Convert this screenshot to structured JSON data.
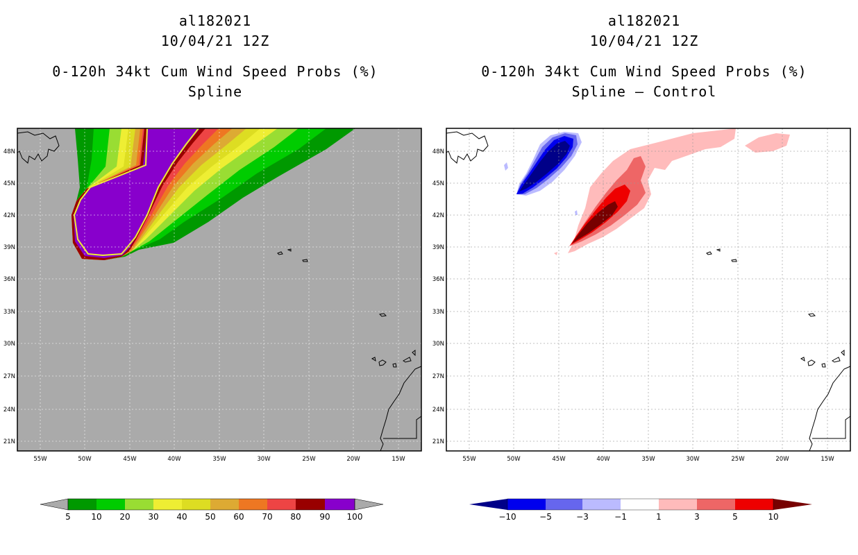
{
  "left_panel": {
    "storm_id": "al182021",
    "datetime": "10/04/21 12Z",
    "product": "0-120h 34kt Cum Wind Speed Probs (%)",
    "method": "Spline",
    "lat_labels": [
      "48N",
      "45N",
      "42N",
      "39N",
      "36N",
      "33N",
      "30N",
      "27N",
      "24N",
      "21N"
    ],
    "lon_labels": [
      "55W",
      "50W",
      "45W",
      "40W",
      "35W",
      "30W",
      "25W",
      "20W",
      "15W"
    ],
    "colorbar_labels": [
      "5",
      "10",
      "20",
      "30",
      "40",
      "50",
      "60",
      "70",
      "80",
      "90",
      "100"
    ],
    "colors": {
      "background": "#aaaaaa",
      "bins": [
        "#009900",
        "#00cc00",
        "#99dd33",
        "#eeee33",
        "#dddd22",
        "#ddaa33",
        "#ee7722",
        "#ee4444",
        "#990000",
        "#8800cc"
      ]
    }
  },
  "right_panel": {
    "storm_id": "al182021",
    "datetime": "10/04/21 12Z",
    "product": "0-120h 34kt Cum Wind Speed Probs (%)",
    "method": "Spline – Control",
    "lat_labels": [
      "48N",
      "45N",
      "42N",
      "39N",
      "36N",
      "33N",
      "30N",
      "27N",
      "24N",
      "21N"
    ],
    "lon_labels": [
      "55W",
      "50W",
      "45W",
      "40W",
      "35W",
      "30W",
      "25W",
      "20W",
      "15W"
    ],
    "colorbar_labels": [
      "−10",
      "−5",
      "−3",
      "−1",
      "1",
      "3",
      "5",
      "10"
    ],
    "colors": {
      "background": "#ffffff",
      "bins": [
        "#000088",
        "#0000ee",
        "#6666ee",
        "#bbbbff",
        "#ffffff",
        "#ffbbbb",
        "#ee6666",
        "#ee0000",
        "#770000"
      ]
    }
  }
}
